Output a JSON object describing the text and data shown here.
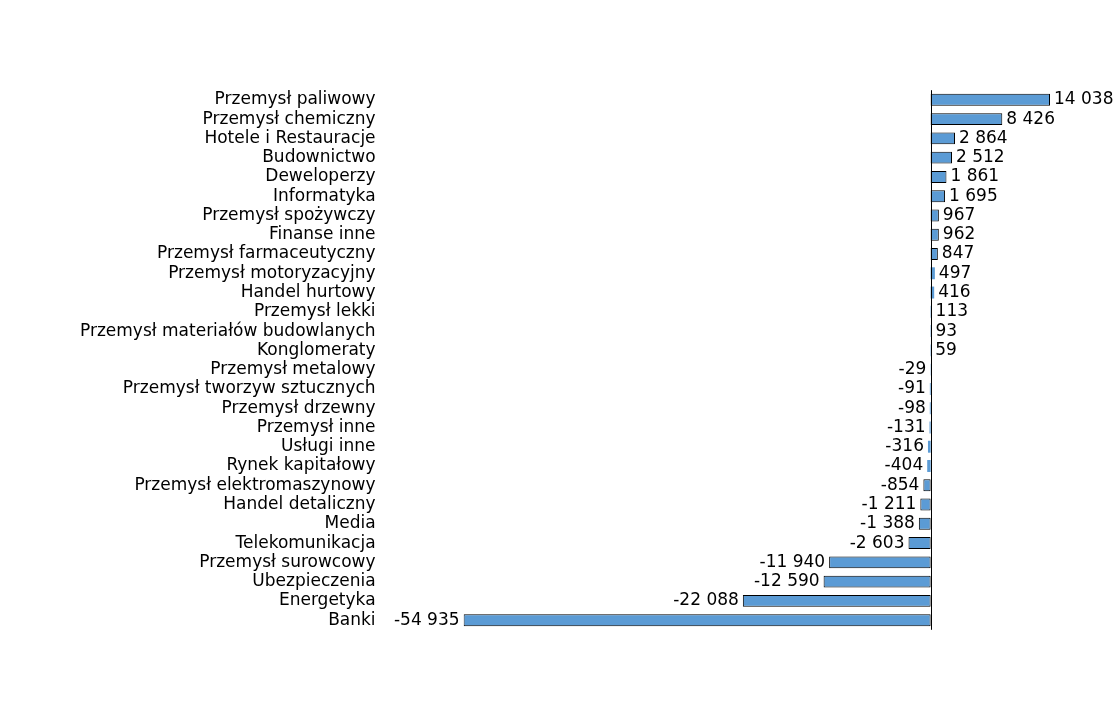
{
  "chart_data": {
    "type": "bar",
    "orientation": "horizontal",
    "tick_labels": "y",
    "legend": false,
    "categories": [
      "Przemysł paliwowy",
      "Przemysł chemiczny",
      "Hotele i Restauracje",
      "Budownictwo",
      "Deweloperzy",
      "Informatyka",
      "Przemysł spożywczy",
      "Finanse inne",
      "Przemysł farmaceutyczny",
      "Przemysł motoryzacyjny",
      "Handel hurtowy",
      "Przemysł lekki",
      "Przemysł materiałów budowlanych",
      "Konglomeraty",
      "Przemysł metalowy",
      "Przemysł tworzyw sztucznych",
      "Przemysł drzewny",
      "Przemysł inne",
      "Usługi inne",
      "Rynek kapitałowy",
      "Przemysł elektromaszynowy",
      "Handel detaliczny",
      "Media",
      "Telekomunikacja",
      "Przemysł surowcowy",
      "Ubezpieczenia",
      "Energetyka",
      "Banki"
    ],
    "values": [
      14038,
      8426,
      2864,
      2512,
      1861,
      1695,
      967,
      962,
      847,
      497,
      416,
      113,
      93,
      59,
      -29,
      -91,
      -98,
      -131,
      -316,
      -404,
      -854,
      -1211,
      -1388,
      -2603,
      -11940,
      -12590,
      -22088,
      -54935
    ],
    "value_labels": [
      "14 038",
      "8 426",
      "2 864",
      "2 512",
      "1 861",
      "1 695",
      "967",
      "962",
      "847",
      "497",
      "416",
      "113",
      "93",
      "59",
      "-29",
      "-91",
      "-98",
      "-131",
      "-316",
      "-404",
      "-854",
      "-1 211",
      "-1 388",
      "-2 603",
      "-11 940",
      "-12 590",
      "-22 088",
      "-54 935"
    ],
    "color": "#5b9bd5"
  }
}
